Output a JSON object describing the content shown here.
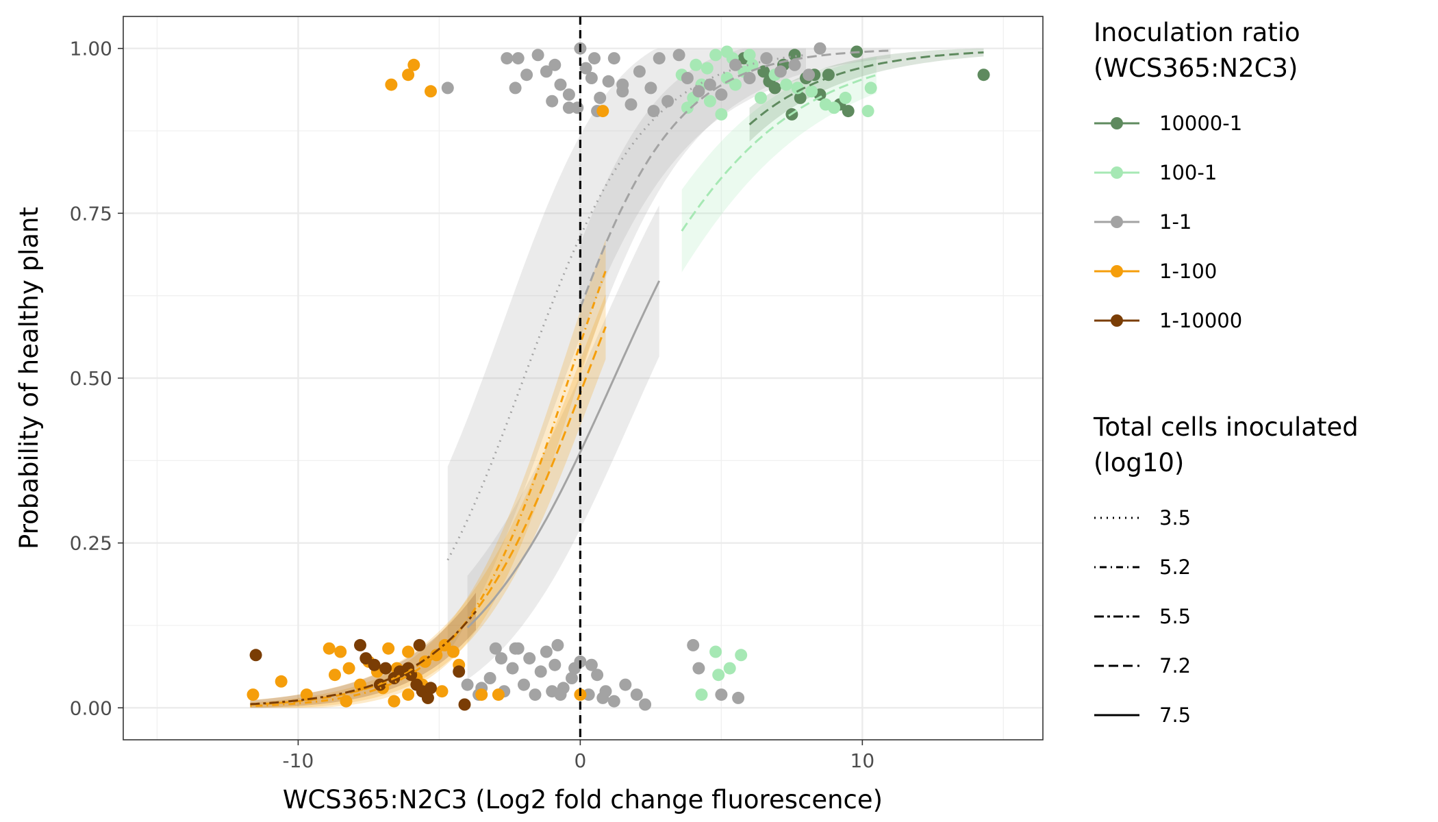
{
  "chart_data": {
    "type": "scatter",
    "xlabel": "WCS365:N2C3 (Log2 fold change fluorescence)",
    "ylabel": "Probability of healthy plant",
    "xlim": [
      -16.2,
      16.4
    ],
    "ylim": [
      -0.0485,
      1.0485
    ],
    "x_ticks": [
      {
        "value": -10,
        "label": "-10"
      },
      {
        "value": 0,
        "label": "0"
      },
      {
        "value": 10,
        "label": "10"
      }
    ],
    "y_ticks": [
      {
        "value": 0,
        "label": "0.00"
      },
      {
        "value": 0.25,
        "label": "0.25"
      },
      {
        "value": 0.5,
        "label": "0.50"
      },
      {
        "value": 0.75,
        "label": "0.75"
      },
      {
        "value": 1,
        "label": "1.00"
      }
    ],
    "grid": true,
    "reference_line": {
      "x": 0,
      "style": "dashed",
      "color": "#000000"
    },
    "legend_position": "right",
    "color_legend": {
      "title_lines": [
        "Inoculation ratio",
        "(WCS365:N2C3)"
      ],
      "entries": [
        {
          "key": "10000-1",
          "label": "10000-1",
          "color": "#5e8a5e"
        },
        {
          "key": "100-1",
          "label": "100-1",
          "color": "#a6e8b4"
        },
        {
          "key": "1-1",
          "label": "1-1",
          "color": "#a3a3a3"
        },
        {
          "key": "1-100",
          "label": "1-100",
          "color": "#f59e0b"
        },
        {
          "key": "1-10000",
          "label": "1-10000",
          "color": "#7a3d05"
        }
      ]
    },
    "linetype_legend": {
      "title_lines": [
        "Total cells inoculated",
        "(log10)"
      ],
      "entries": [
        {
          "label": "3.5",
          "dash": "2 7"
        },
        {
          "label": "5.2",
          "dash": "2 6 10 6"
        },
        {
          "label": "5.5",
          "dash": "14 5 4 5"
        },
        {
          "label": "7.2",
          "dash": "14 7"
        },
        {
          "label": "7.5",
          "dash": ""
        }
      ]
    },
    "fits": [
      {
        "group": "1-1",
        "total_cells": "3.5",
        "x0": -4.7,
        "x1": 8.0,
        "mid": -2.0,
        "k": 0.46,
        "band": 0.17,
        "color": "#a3a3a3",
        "dash": "2 7"
      },
      {
        "group": "1-1",
        "total_cells": "7.2",
        "x0": 0.0,
        "x1": 11.0,
        "mid": -0.9,
        "k": 0.48,
        "band": 0.1,
        "color": "#a3a3a3",
        "dash": "14 7"
      },
      {
        "group": "1-1",
        "total_cells": "7.5",
        "x0": -4.0,
        "x1": 2.8,
        "mid": 1.2,
        "k": 0.38,
        "band": 0.12,
        "color": "#a3a3a3",
        "dash": ""
      },
      {
        "group": "1-100",
        "total_cells": "5.2",
        "x0": -11.7,
        "x1": 0.9,
        "mid": -0.4,
        "k": 0.52,
        "band": 0.05,
        "color": "#f59e0b",
        "dash": "2 6 10 6"
      },
      {
        "group": "1-100",
        "total_cells": "7.2",
        "x0": -11.7,
        "x1": 0.9,
        "mid": 0.2,
        "k": 0.45,
        "band": 0.05,
        "color": "#f59e0b",
        "dash": "14 7"
      },
      {
        "group": "1-10000",
        "total_cells": "5.5",
        "x0": -11.7,
        "x1": -3.7,
        "mid": 0.4,
        "k": 0.43,
        "band": 0.04,
        "color": "#7a3d05",
        "dash": "14 5 4 5"
      },
      {
        "group": "100-1",
        "total_cells": "7.2",
        "x0": 3.6,
        "x1": 10.5,
        "mid": 0.6,
        "k": 0.32,
        "band": 0.07,
        "color": "#a6e8b4",
        "dash": "14 7"
      },
      {
        "group": "10000-1",
        "total_cells": "7.2",
        "x0": 6.0,
        "x1": 14.3,
        "mid": 0.5,
        "k": 0.37,
        "band": 0.04,
        "color": "#5e8a5e",
        "dash": "14 7"
      }
    ],
    "series": [
      {
        "name": "10000-1",
        "points": [
          [
            5.8,
            0.985
          ],
          [
            6.5,
            0.965
          ],
          [
            7.2,
            0.975
          ],
          [
            7.6,
            0.99
          ],
          [
            8.0,
            0.955
          ],
          [
            8.3,
            0.96
          ],
          [
            6.9,
            0.94
          ],
          [
            7.8,
            0.925
          ],
          [
            8.5,
            0.93
          ],
          [
            8.8,
            0.96
          ],
          [
            9.2,
            0.915
          ],
          [
            9.5,
            0.905
          ],
          [
            7.5,
            0.9
          ],
          [
            9.8,
            0.995
          ],
          [
            14.3,
            0.96
          ],
          [
            6.7,
            0.95
          ]
        ]
      },
      {
        "name": "100-1",
        "points": [
          [
            3.6,
            0.96
          ],
          [
            4.1,
            0.975
          ],
          [
            4.5,
            0.97
          ],
          [
            4.8,
            0.99
          ],
          [
            5.4,
            0.985
          ],
          [
            5.8,
            0.965
          ],
          [
            6.1,
            0.975
          ],
          [
            5.2,
            0.955
          ],
          [
            4.3,
            0.945
          ],
          [
            4.0,
            0.925
          ],
          [
            4.6,
            0.92
          ],
          [
            5.0,
            0.9
          ],
          [
            5.5,
            0.945
          ],
          [
            6.4,
            0.925
          ],
          [
            6.9,
            0.96
          ],
          [
            7.3,
            0.945
          ],
          [
            7.7,
            0.94
          ],
          [
            8.2,
            0.935
          ],
          [
            8.7,
            0.915
          ],
          [
            9.0,
            0.91
          ],
          [
            9.4,
            0.925
          ],
          [
            10.3,
            0.94
          ],
          [
            10.2,
            0.905
          ],
          [
            6.0,
            0.99
          ],
          [
            5.2,
            0.995
          ],
          [
            3.8,
            0.91
          ],
          [
            4.8,
            0.085
          ],
          [
            5.7,
            0.08
          ],
          [
            4.3,
            0.02
          ],
          [
            4.9,
            0.05
          ],
          [
            5.3,
            0.06
          ]
        ]
      },
      {
        "name": "1-1",
        "points": [
          [
            -4.7,
            0.94
          ],
          [
            -2.6,
            0.985
          ],
          [
            -2.2,
            0.985
          ],
          [
            -1.9,
            0.96
          ],
          [
            -1.5,
            0.99
          ],
          [
            -1.2,
            0.965
          ],
          [
            -0.9,
            0.975
          ],
          [
            -0.7,
            0.945
          ],
          [
            -0.4,
            0.93
          ],
          [
            -0.1,
            0.91
          ],
          [
            0.2,
            0.97
          ],
          [
            0.4,
            0.955
          ],
          [
            0.7,
            0.925
          ],
          [
            1.0,
            0.95
          ],
          [
            1.2,
            0.985
          ],
          [
            1.5,
            0.935
          ],
          [
            1.8,
            0.915
          ],
          [
            2.1,
            0.965
          ],
          [
            2.5,
            0.94
          ],
          [
            2.8,
            0.985
          ],
          [
            3.1,
            0.92
          ],
          [
            3.5,
            0.99
          ],
          [
            3.8,
            0.955
          ],
          [
            4.2,
            0.935
          ],
          [
            4.6,
            0.945
          ],
          [
            5.0,
            0.93
          ],
          [
            5.5,
            0.975
          ],
          [
            6.0,
            0.955
          ],
          [
            6.6,
            0.985
          ],
          [
            7.1,
            0.965
          ],
          [
            7.6,
            0.975
          ],
          [
            8.1,
            0.96
          ],
          [
            8.5,
            1.0
          ],
          [
            -2.3,
            0.94
          ],
          [
            -1.0,
            0.92
          ],
          [
            0.0,
            1.0
          ],
          [
            0.5,
            0.985
          ],
          [
            -0.4,
            0.91
          ],
          [
            0.6,
            0.905
          ],
          [
            1.5,
            0.945
          ],
          [
            2.6,
            0.905
          ],
          [
            -4.0,
            0.035
          ],
          [
            -3.6,
            0.02
          ],
          [
            -3.2,
            0.045
          ],
          [
            -2.8,
            0.075
          ],
          [
            -2.4,
            0.06
          ],
          [
            -2.0,
            0.035
          ],
          [
            -1.6,
            0.02
          ],
          [
            -1.2,
            0.085
          ],
          [
            -0.9,
            0.065
          ],
          [
            -0.6,
            0.03
          ],
          [
            -0.3,
            0.045
          ],
          [
            0.0,
            0.07
          ],
          [
            0.3,
            0.02
          ],
          [
            0.6,
            0.05
          ],
          [
            0.9,
            0.025
          ],
          [
            1.2,
            0.01
          ],
          [
            1.6,
            0.035
          ],
          [
            2.0,
            0.02
          ],
          [
            2.3,
            0.005
          ],
          [
            -3.5,
            0.03
          ],
          [
            -2.2,
            0.09
          ],
          [
            -1.8,
            0.075
          ],
          [
            -1.4,
            0.055
          ],
          [
            -0.7,
            0.02
          ],
          [
            0.4,
            0.065
          ],
          [
            0.8,
            0.015
          ],
          [
            -2.7,
            0.025
          ],
          [
            -1.0,
            0.025
          ],
          [
            -0.2,
            0.06
          ],
          [
            -3.0,
            0.09
          ],
          [
            -2.3,
            0.09
          ],
          [
            -0.8,
            0.095
          ],
          [
            4.0,
            0.095
          ],
          [
            4.2,
            0.06
          ],
          [
            5.0,
            0.02
          ],
          [
            5.6,
            0.015
          ]
        ]
      },
      {
        "name": "1-100",
        "points": [
          [
            -6.7,
            0.945
          ],
          [
            -6.1,
            0.96
          ],
          [
            -5.9,
            0.975
          ],
          [
            -5.3,
            0.935
          ],
          [
            0.8,
            0.905
          ],
          [
            -11.6,
            0.02
          ],
          [
            -10.6,
            0.04
          ],
          [
            -9.7,
            0.02
          ],
          [
            -8.9,
            0.09
          ],
          [
            -8.7,
            0.05
          ],
          [
            -8.5,
            0.085
          ],
          [
            -8.2,
            0.06
          ],
          [
            -7.8,
            0.035
          ],
          [
            -7.5,
            0.07
          ],
          [
            -7.2,
            0.055
          ],
          [
            -6.8,
            0.09
          ],
          [
            -6.5,
            0.06
          ],
          [
            -6.1,
            0.085
          ],
          [
            -5.8,
            0.045
          ],
          [
            -5.5,
            0.07
          ],
          [
            -5.1,
            0.08
          ],
          [
            -4.8,
            0.095
          ],
          [
            -4.5,
            0.085
          ],
          [
            -4.3,
            0.065
          ],
          [
            -6.6,
            0.01
          ],
          [
            -5.6,
            0.035
          ],
          [
            -4.9,
            0.025
          ],
          [
            -5.4,
            0.015
          ],
          [
            -8.3,
            0.01
          ],
          [
            -3.5,
            0.02
          ],
          [
            -2.9,
            0.02
          ],
          [
            -6.1,
            0.02
          ],
          [
            -7.0,
            0.03
          ],
          [
            0.0,
            0.02
          ]
        ]
      },
      {
        "name": "1-10000",
        "points": [
          [
            -11.5,
            0.08
          ],
          [
            -7.8,
            0.095
          ],
          [
            -7.6,
            0.075
          ],
          [
            -7.3,
            0.065
          ],
          [
            -6.9,
            0.06
          ],
          [
            -6.6,
            0.045
          ],
          [
            -6.4,
            0.055
          ],
          [
            -6.0,
            0.05
          ],
          [
            -5.8,
            0.035
          ],
          [
            -5.6,
            0.025
          ],
          [
            -5.3,
            0.03
          ],
          [
            -7.1,
            0.035
          ],
          [
            -5.7,
            0.095
          ],
          [
            -4.3,
            0.055
          ],
          [
            -4.1,
            0.005
          ],
          [
            -5.4,
            0.015
          ],
          [
            -6.1,
            0.06
          ]
        ]
      }
    ]
  }
}
